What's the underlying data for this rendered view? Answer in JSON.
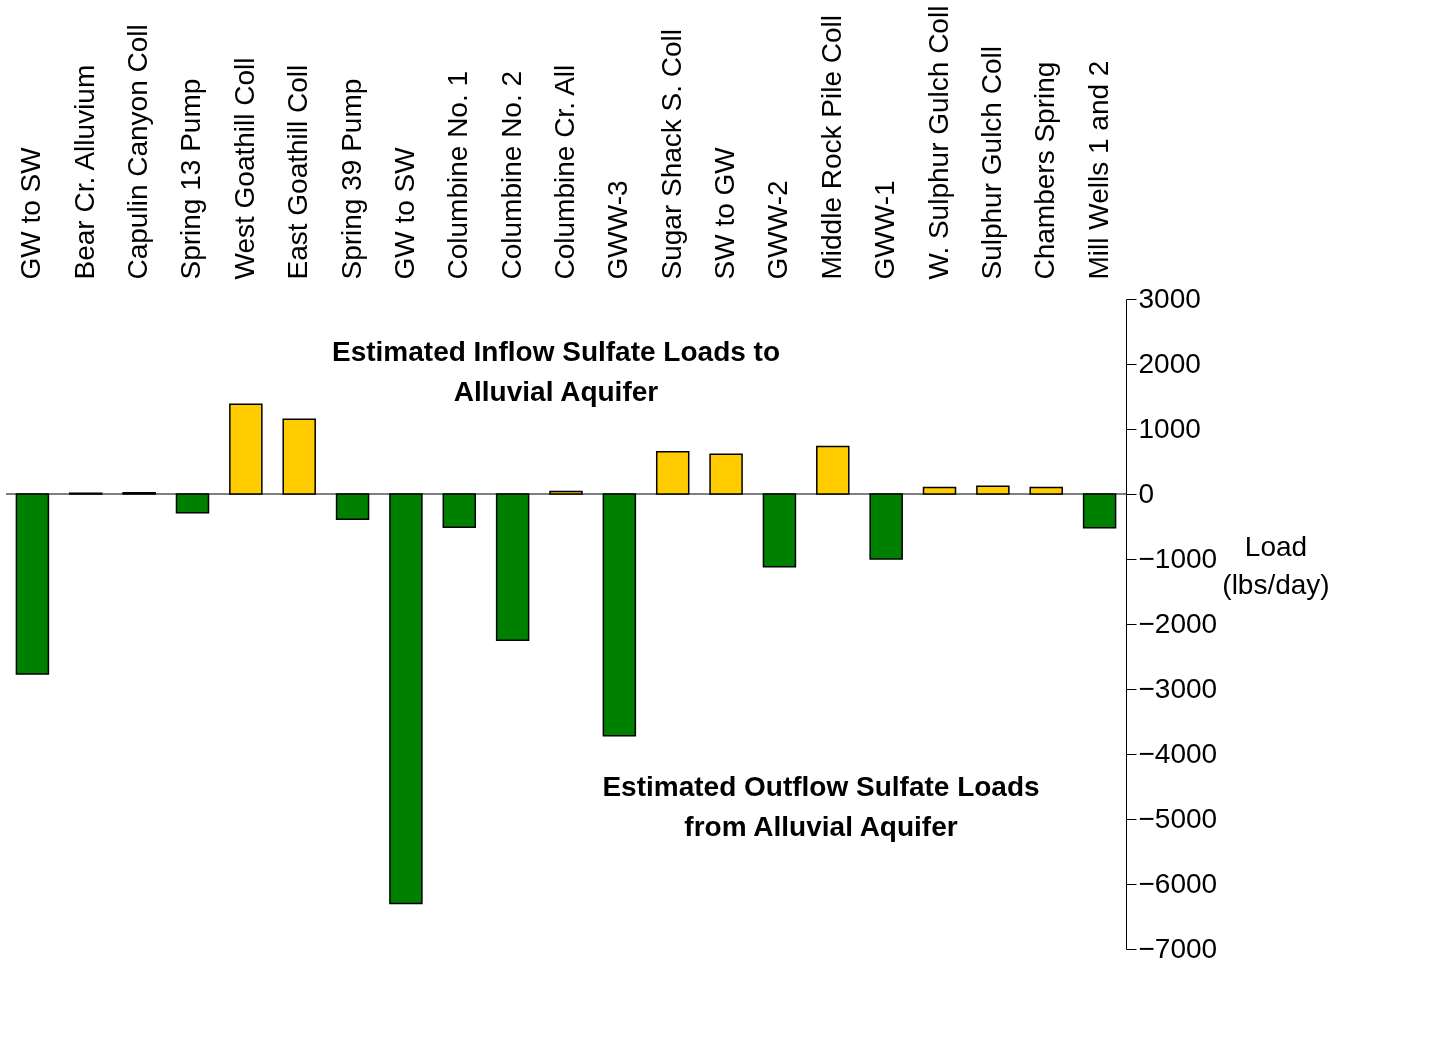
{
  "chart_data": {
    "type": "bar",
    "categories": [
      "GW to SW",
      "Bear Cr. Alluvium",
      "Capulin Canyon Coll",
      "Spring 13 Pump",
      "West Goathill Coll",
      "East Goathill Coll",
      "Spring 39 Pump",
      "GW to SW",
      "Columbine No. 1",
      "Columbine No. 2",
      "Columbine Cr. All",
      "GWW-3",
      "Sugar Shack S. Coll",
      "SW to GW",
      "GWW-2",
      "Middle Rock Pile Coll",
      "GWW-1",
      "W. Sulphur Gulch Coll",
      "Sulphur Gulch Coll",
      "Chambers Spring",
      "Mill Wells 1 and 2"
    ],
    "values": [
      -2770,
      10,
      20,
      -290,
      1380,
      1150,
      -390,
      -6300,
      -510,
      -2250,
      40,
      -3720,
      650,
      610,
      -1120,
      730,
      -1000,
      100,
      120,
      100,
      -520
    ],
    "colors": [
      "#008000",
      "#ffcc00",
      "#ffcc00",
      "#008000",
      "#ffcc00",
      "#ffcc00",
      "#008000",
      "#008000",
      "#008000",
      "#008000",
      "#ffcc00",
      "#008000",
      "#ffcc00",
      "#ffcc00",
      "#008000",
      "#ffcc00",
      "#008000",
      "#ffcc00",
      "#ffcc00",
      "#ffcc00",
      "#008000"
    ],
    "ylabel": "Load (lbs/day)",
    "ylim": [
      -7000,
      3000
    ],
    "yticks": [
      -7000,
      -6000,
      -5000,
      -4000,
      -3000,
      -2000,
      -1000,
      0,
      1000,
      2000,
      3000
    ],
    "grid": false,
    "ref_lines": [
      {
        "axis": "y",
        "value": 0,
        "color": "#000000"
      }
    ],
    "annotations": [
      "Estimated Inflow Sulfate Loads to Alluvial Aquifer",
      "Estimated Outflow Sulfate Loads from Alluvial Aquifer"
    ]
  }
}
